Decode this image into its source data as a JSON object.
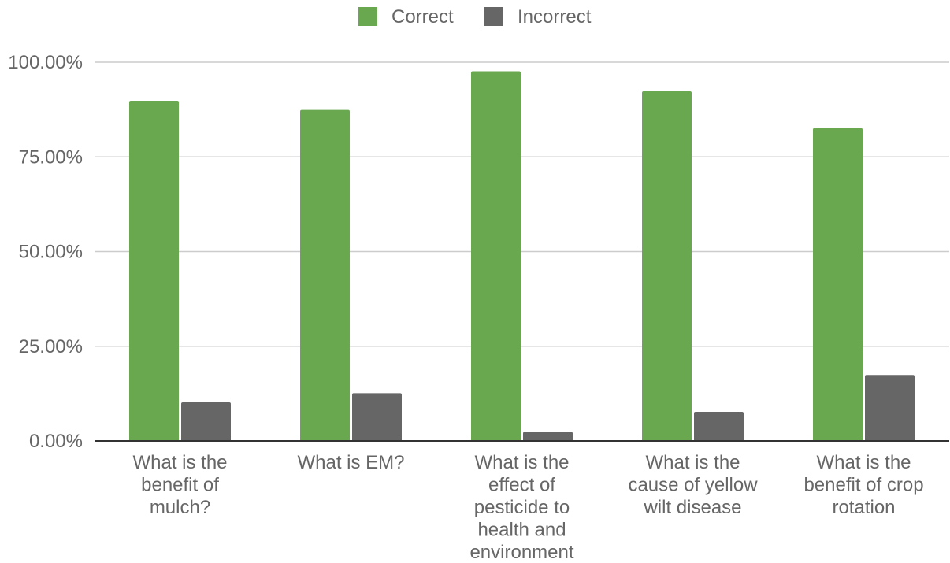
{
  "chart_data": {
    "type": "bar",
    "categories": [
      [
        "What is the",
        "benefit of",
        "mulch?"
      ],
      [
        "What is EM?"
      ],
      [
        "What is the",
        "effect of",
        "pesticide to",
        "health and",
        "environment"
      ],
      [
        "What is the",
        "cause of yellow",
        "wilt disease"
      ],
      [
        "What is the",
        "benefit of crop",
        "rotation"
      ]
    ],
    "series": [
      {
        "name": "Correct",
        "color": "#6aa84f",
        "values": [
          89.8,
          87.4,
          97.6,
          92.3,
          82.6
        ]
      },
      {
        "name": "Incorrect",
        "color": "#666666",
        "values": [
          10.2,
          12.6,
          2.4,
          7.7,
          17.4
        ]
      }
    ],
    "y_ticks": [
      "0.00%",
      "25.00%",
      "50.00%",
      "75.00%",
      "100.00%"
    ],
    "y_tick_values": [
      0,
      25,
      50,
      75,
      100
    ],
    "ylim": [
      0,
      100
    ],
    "grid": true,
    "legend_position": "top-center",
    "title": "",
    "xlabel": "",
    "ylabel": ""
  }
}
